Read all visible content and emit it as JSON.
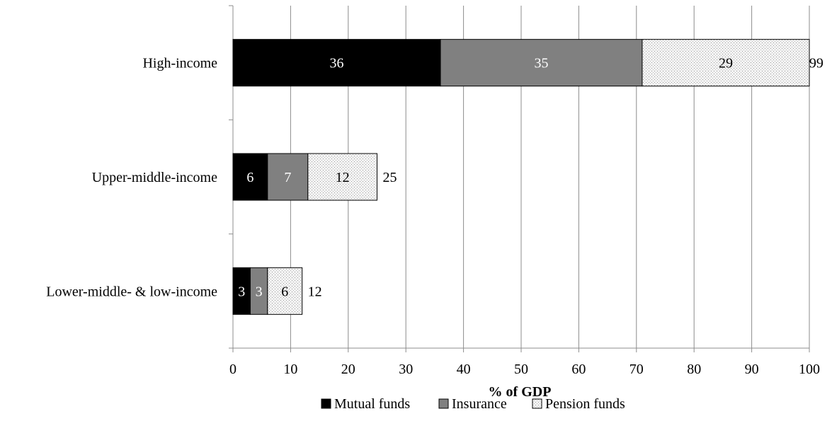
{
  "chart_data": {
    "type": "bar",
    "orientation": "horizontal",
    "stacked": true,
    "categories": [
      "High-income",
      "Upper-middle-income",
      "Lower-middle- & low-income"
    ],
    "series": [
      {
        "name": "Mutual funds",
        "values": [
          36,
          6,
          3
        ],
        "labels": [
          "36",
          "6",
          "3"
        ],
        "color": "#000000"
      },
      {
        "name": "Insurance",
        "values": [
          35,
          7,
          3
        ],
        "labels": [
          "35",
          "7",
          "3"
        ],
        "color": "#808080"
      },
      {
        "name": "Pension funds",
        "values": [
          29,
          12,
          6
        ],
        "labels": [
          "29",
          "12",
          "6"
        ],
        "color": "#eeeeee",
        "pattern": "dotted"
      }
    ],
    "totals": [
      99,
      25,
      12
    ],
    "total_labels": [
      "99",
      "25",
      "12"
    ],
    "xlabel": "% of GDP",
    "ylabel": "",
    "xlim": [
      0,
      100
    ],
    "xticks": [
      0,
      10,
      20,
      30,
      40,
      50,
      60,
      70,
      80,
      90,
      100
    ],
    "xtick_labels": [
      "0",
      "10",
      "20",
      "30",
      "40",
      "50",
      "60",
      "70",
      "80",
      "90",
      "100"
    ],
    "grid": "vertical",
    "legend": "bottom"
  }
}
